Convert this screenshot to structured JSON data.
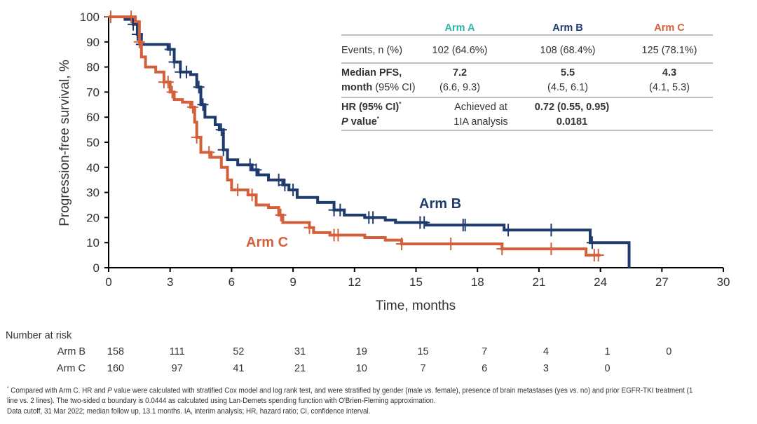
{
  "chart_data": {
    "type": "line",
    "subtype": "kaplan-meier step",
    "xlabel": "Time, months",
    "ylabel": "Progression-free survival, %",
    "xlim": [
      0,
      30
    ],
    "ylim": [
      0,
      100
    ],
    "xticks": [
      0,
      3,
      6,
      9,
      12,
      15,
      18,
      21,
      24,
      27,
      30
    ],
    "yticks": [
      0,
      10,
      20,
      30,
      40,
      50,
      60,
      70,
      80,
      90,
      100
    ],
    "grid": false,
    "series": [
      {
        "name": "Arm B",
        "color": "#1f3b6e",
        "steps": [
          [
            0,
            100
          ],
          [
            0.8,
            99
          ],
          [
            1.2,
            97
          ],
          [
            1.4,
            93
          ],
          [
            1.6,
            89
          ],
          [
            2.9,
            87
          ],
          [
            3.2,
            82
          ],
          [
            3.5,
            78
          ],
          [
            4.0,
            77
          ],
          [
            4.3,
            72
          ],
          [
            4.5,
            65
          ],
          [
            4.7,
            60
          ],
          [
            5.2,
            57
          ],
          [
            5.4,
            55
          ],
          [
            5.6,
            47
          ],
          [
            5.8,
            43
          ],
          [
            6.3,
            41
          ],
          [
            7.0,
            39
          ],
          [
            7.3,
            37
          ],
          [
            7.8,
            35
          ],
          [
            8.5,
            33
          ],
          [
            8.8,
            31
          ],
          [
            9.2,
            28
          ],
          [
            10.2,
            26
          ],
          [
            11.0,
            23
          ],
          [
            11.5,
            21
          ],
          [
            12.5,
            20
          ],
          [
            13.5,
            19
          ],
          [
            14.0,
            18
          ],
          [
            15.5,
            17
          ],
          [
            19.3,
            15
          ],
          [
            23.5,
            10
          ],
          [
            25.4,
            0
          ]
        ],
        "end": 25.4,
        "censored": [
          1.2,
          1.4,
          1.6,
          3.0,
          3.2,
          3.5,
          3.8,
          4.4,
          4.6,
          5.5,
          5.6,
          6.9,
          7.2,
          8.3,
          8.6,
          9.0,
          11.0,
          11.3,
          12.7,
          12.9,
          15.2,
          15.4,
          17.3,
          17.4,
          19.5,
          21.6,
          23.6
        ]
      },
      {
        "name": "Arm C",
        "color": "#d3603a",
        "steps": [
          [
            0,
            100
          ],
          [
            1.3,
            98
          ],
          [
            1.5,
            90
          ],
          [
            1.6,
            84
          ],
          [
            1.8,
            80
          ],
          [
            2.3,
            78
          ],
          [
            2.7,
            74
          ],
          [
            3.0,
            70
          ],
          [
            3.2,
            67
          ],
          [
            3.6,
            66
          ],
          [
            4.0,
            64
          ],
          [
            4.2,
            58
          ],
          [
            4.3,
            52
          ],
          [
            4.5,
            46
          ],
          [
            5.0,
            44
          ],
          [
            5.5,
            40
          ],
          [
            5.8,
            35
          ],
          [
            6.0,
            31
          ],
          [
            6.8,
            29
          ],
          [
            7.2,
            25
          ],
          [
            7.8,
            24
          ],
          [
            8.3,
            21
          ],
          [
            8.5,
            18
          ],
          [
            9.8,
            16
          ],
          [
            10.0,
            14
          ],
          [
            10.8,
            13
          ],
          [
            12.5,
            12
          ],
          [
            13.5,
            11
          ],
          [
            14.3,
            9.5
          ],
          [
            19.2,
            7.5
          ],
          [
            23.3,
            5
          ]
        ],
        "end": 24.0,
        "censored": [
          0.1,
          1.1,
          1.5,
          2.7,
          2.9,
          3.1,
          4.1,
          4.3,
          4.9,
          6.3,
          7.0,
          8.4,
          9.8,
          11.0,
          11.2,
          14.3,
          16.7,
          19.2,
          21.6,
          23.7,
          23.9
        ]
      }
    ],
    "annotations": [
      "Arm B",
      "Arm C"
    ]
  },
  "summary_table": {
    "columns": [
      "Arm A",
      "Arm B",
      "Arm C"
    ],
    "column_colors": [
      "#2fb5a8",
      "#1f3b6e",
      "#d3603a"
    ],
    "rows": {
      "events": {
        "label": "Events, n (%)",
        "values": [
          "102 (64.6%)",
          "108 (68.4%)",
          "125 (78.1%)"
        ]
      },
      "median": {
        "label_bold": "Median PFS,",
        "label2_bold": "month",
        "label2_rest": " (95% CI)",
        "values": [
          "7.2",
          "5.5",
          "4.3"
        ],
        "ci": [
          "(6.6, 9.3)",
          "(4.5, 6.1)",
          "(4.1, 5.3)"
        ]
      },
      "hr": {
        "label": "HR (95% CI)",
        "p_label_italic": "P",
        "p_label_rest": " value",
        "mark": "*",
        "arm_a_line1": "Achieved at",
        "arm_a_line2": "1IA analysis",
        "hr_value": "0.72 (0.55, 0.95)",
        "p_value": "0.0181"
      }
    }
  },
  "risk_table": {
    "title": "Number at risk",
    "rows": [
      {
        "label": "Arm B",
        "values": [
          "158",
          "111",
          "52",
          "31",
          "19",
          "15",
          "7",
          "4",
          "1",
          "0"
        ]
      },
      {
        "label": "Arm C",
        "values": [
          "160",
          "97",
          "41",
          "21",
          "10",
          "7",
          "6",
          "3",
          "0"
        ]
      }
    ]
  },
  "footnote": {
    "mark": "*",
    "line1_a": " Compared with Arm C. HR and ",
    "line1_p": "P",
    "line1_b": " value were calculated with stratified Cox model and log rank test, and were stratified by gender (male vs. female), presence of brain metastases (yes vs. no) and prior EGFR-TKI treatment (1 line vs. 2 lines). The two-sided α boundary is 0.0444 as calculated using Lan-Demets spending function with O'Brien-Fleming approximation.",
    "line3": "Data cutoff, 31 Mar 2022; median follow up, 13.1 months. IA, interim analysis; HR, hazard ratio; CI, confidence interval."
  }
}
